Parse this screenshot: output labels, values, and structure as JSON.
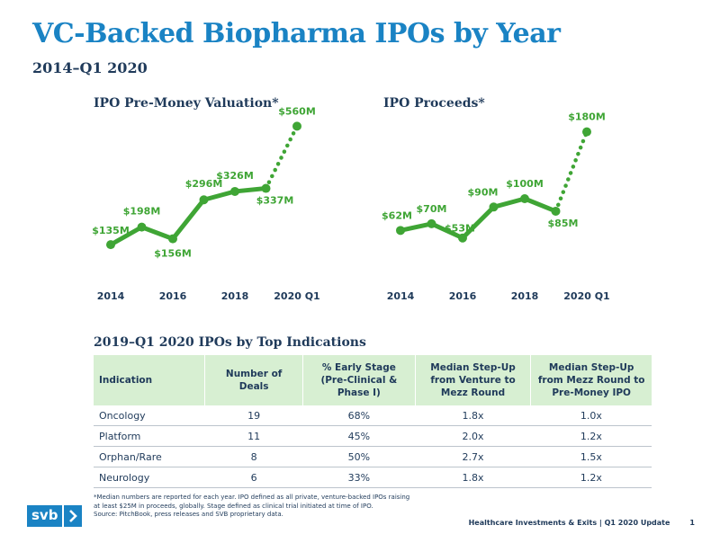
{
  "header": {
    "title": "VC-Backed Biopharma IPOs by Year",
    "subtitle": "2014–Q1 2020"
  },
  "chart_data": [
    {
      "type": "line",
      "title": "IPO Pre-Money Valuation*",
      "x": [
        "2014",
        "2015",
        "2016",
        "2017",
        "2018",
        "2019",
        "2020 Q1"
      ],
      "tick_labels": [
        "2014",
        "2016",
        "2018",
        "2020 Q1"
      ],
      "values": [
        135,
        198,
        156,
        296,
        326,
        337,
        560
      ],
      "data_labels": [
        "$135M",
        "$198M",
        "$156M",
        "$296M",
        "$326M",
        "$337M",
        "$560M"
      ],
      "ylim": [
        0,
        600
      ],
      "line_style": "solid for full years, dotted to 2020 Q1",
      "color": "#3fa535"
    },
    {
      "type": "line",
      "title": "IPO Proceeds*",
      "x": [
        "2014",
        "2015",
        "2016",
        "2017",
        "2018",
        "2019",
        "2020 Q1"
      ],
      "tick_labels": [
        "2014",
        "2016",
        "2018",
        "2020 Q1"
      ],
      "values": [
        62,
        70,
        53,
        90,
        100,
        85,
        180
      ],
      "data_labels": [
        "$62M",
        "$70M",
        "$53M",
        "$90M",
        "$100M",
        "$85M",
        "$180M"
      ],
      "ylim": [
        0,
        200
      ],
      "line_style": "solid for full years, dotted to 2020 Q1",
      "color": "#3fa535"
    }
  ],
  "table": {
    "title": "2019–Q1 2020 IPOs by Top Indications",
    "headers": [
      [
        "Indication"
      ],
      [
        "Number of Deals"
      ],
      [
        "% Early Stage",
        "(Pre-Clinical &",
        "Phase I)"
      ],
      [
        "Median Step-Up",
        "from Venture to",
        "Mezz Round"
      ],
      [
        "Median Step-Up",
        "from Mezz Round to",
        "Pre-Money IPO"
      ]
    ],
    "rows": [
      [
        "Oncology",
        "19",
        "68%",
        "1.8x",
        "1.0x"
      ],
      [
        "Platform",
        "11",
        "45%",
        "2.0x",
        "1.2x"
      ],
      [
        "Orphan/Rare",
        "8",
        "50%",
        "2.7x",
        "1.5x"
      ],
      [
        "Neurology",
        "6",
        "33%",
        "1.8x",
        "1.2x"
      ]
    ]
  },
  "footnote": {
    "line1": "*Median numbers are reported for each year. IPO defined as all private, venture-backed IPOs raising",
    "line2": "at least $25M in proceeds, globally. Stage defined as clinical trial initiated at time of IPO.",
    "line3": "Source: PitchBook, press releases and SVB proprietary data."
  },
  "footer": {
    "logo_text": "svb",
    "report": "Healthcare Investments & Exits | Q1 2020 Update",
    "page_number": "1"
  }
}
